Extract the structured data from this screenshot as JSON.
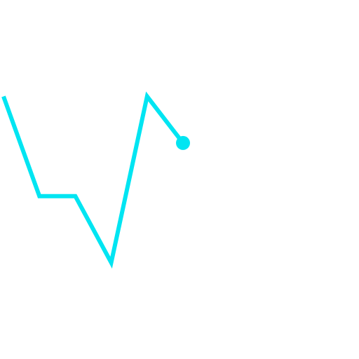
{
  "colors": {
    "background": "#ffffff",
    "line": "#00e5f2"
  },
  "chart_data": {
    "type": "line",
    "x": [
      0,
      1,
      2,
      3,
      4,
      5
    ],
    "series": [
      {
        "values": [
          5,
          2,
          2,
          0,
          5,
          3.6
        ]
      }
    ],
    "end_marker": true,
    "xlim": [
      0,
      10
    ],
    "ylim": [
      -2.9,
      7.9
    ],
    "grid": false,
    "legend": "none",
    "title": "",
    "xlabel": "",
    "ylabel": ""
  }
}
